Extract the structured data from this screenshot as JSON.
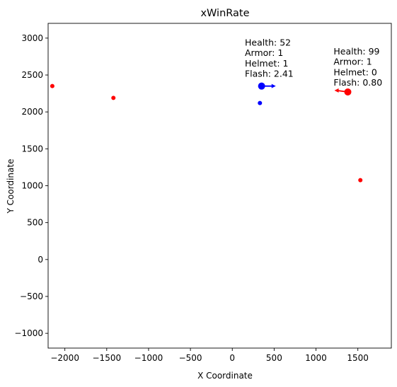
{
  "chart_data": {
    "type": "scatter",
    "title": "xWinRate",
    "xlabel": "X Coordinate",
    "ylabel": "Y Coordinate",
    "xlim": [
      -2200,
      1900
    ],
    "ylim": [
      -1200,
      3200
    ],
    "xticks": [
      {
        "value": -2000,
        "label": "−2000"
      },
      {
        "value": -1500,
        "label": "−1500"
      },
      {
        "value": -1000,
        "label": "−1000"
      },
      {
        "value": -500,
        "label": "−500"
      },
      {
        "value": 0,
        "label": "0"
      },
      {
        "value": 500,
        "label": "500"
      },
      {
        "value": 1000,
        "label": "1000"
      },
      {
        "value": 1500,
        "label": "1500"
      }
    ],
    "yticks": [
      {
        "value": -1000,
        "label": "−1000"
      },
      {
        "value": -500,
        "label": "−500"
      },
      {
        "value": 0,
        "label": "0"
      },
      {
        "value": 500,
        "label": "500"
      },
      {
        "value": 1000,
        "label": "1000"
      },
      {
        "value": 1500,
        "label": "1500"
      },
      {
        "value": 2000,
        "label": "2000"
      },
      {
        "value": 2500,
        "label": "2500"
      },
      {
        "value": 3000,
        "label": "3000"
      }
    ],
    "grid": false,
    "colors": {
      "blue": "#0000ff",
      "red": "#ff0000"
    },
    "points": [
      {
        "x": -2150,
        "y": 2350,
        "color": "red",
        "size": "small"
      },
      {
        "x": -1420,
        "y": 2190,
        "color": "red",
        "size": "small"
      },
      {
        "x": 330,
        "y": 2120,
        "color": "blue",
        "size": "small"
      },
      {
        "x": 1530,
        "y": 1075,
        "color": "red",
        "size": "small"
      },
      {
        "x": 350,
        "y": 2350,
        "color": "blue",
        "size": "large",
        "arrow_to": {
          "x": 520,
          "y": 2350
        }
      },
      {
        "x": 1380,
        "y": 2270,
        "color": "red",
        "size": "large",
        "arrow_to": {
          "x": 1220,
          "y": 2290
        }
      }
    ],
    "annotations": [
      {
        "x": 150,
        "y": 2900,
        "lines": [
          "Health: 52",
          "Armor: 1",
          "Helmet: 1",
          "Flash: 2.41"
        ]
      },
      {
        "x": 1210,
        "y": 2780,
        "lines": [
          "Health: 99",
          "Armor: 1",
          "Helmet: 0",
          "Flash: 0.80"
        ]
      }
    ]
  }
}
